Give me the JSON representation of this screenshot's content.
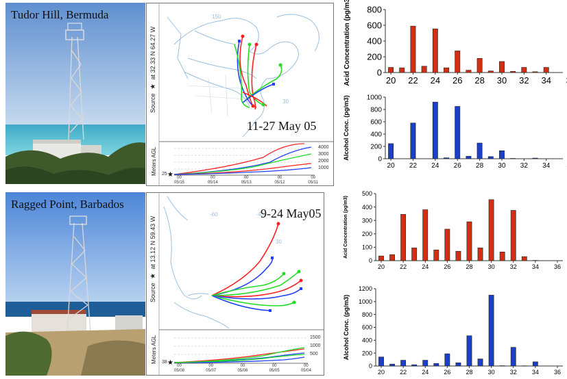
{
  "sites": [
    {
      "name": "Tudor Hill, Bermuda",
      "source_lat": "32.33 N",
      "source_lon": "64.27 W",
      "date_range": "11-27 May 05",
      "map_labels": [
        "150",
        "30"
      ],
      "height_axis_label": "Meters AGL",
      "height_ticks": [
        "4000",
        "3000",
        "2000",
        "1000"
      ],
      "height_base": "25",
      "date_ticks": [
        {
          "top": "00",
          "bottom": "05/15"
        },
        {
          "top": "00",
          "bottom": "05/14"
        },
        {
          "top": "00",
          "bottom": "05/13"
        },
        {
          "top": "00",
          "bottom": "05/12"
        },
        {
          "top": "00",
          "bottom": "05/11"
        }
      ]
    },
    {
      "name": "Ragged Point, Barbados",
      "source_lat": "13.12 N",
      "source_lon": "59.43 W",
      "date_range": "9-24 May05",
      "map_labels": [
        "-60",
        "-45",
        "30"
      ],
      "height_axis_label": "Meters AGL",
      "height_ticks": [
        "1500",
        "1000",
        "500"
      ],
      "height_base": "38",
      "date_ticks": [
        {
          "top": "00",
          "bottom": "05/08"
        },
        {
          "top": "00",
          "bottom": "05/07"
        },
        {
          "top": "00",
          "bottom": "05/06"
        },
        {
          "top": "00",
          "bottom": "05/05"
        },
        {
          "top": "00",
          "bottom": "05/04"
        }
      ]
    }
  ],
  "source_word": "Source",
  "at_word": "at",
  "colors": {
    "acid": "#d42e12",
    "alcohol": "#1c3fc8",
    "traj_red": "#ff2020",
    "traj_blue": "#2040ff",
    "traj_green": "#22dd22",
    "map_line": "#9cc0e0"
  },
  "chart_data": [
    {
      "type": "bar",
      "ylabel": "Acid Concentration (pg/m3)",
      "ylim": [
        0,
        800
      ],
      "yticks": [
        0,
        200,
        400,
        600,
        800
      ],
      "xticks": [
        "20",
        "22",
        "24",
        "26",
        "28",
        "30",
        "32",
        "34",
        "3"
      ],
      "x": [
        20,
        21,
        22,
        23,
        24,
        25,
        26,
        27,
        28,
        29,
        30,
        31,
        32,
        33,
        34
      ],
      "values": [
        65,
        60,
        590,
        80,
        555,
        60,
        275,
        30,
        180,
        20,
        140,
        15,
        65,
        10,
        65
      ],
      "color": "#d42e12"
    },
    {
      "type": "bar",
      "ylabel": "Alcohol Conc. (pg/m3)",
      "ylim": [
        0,
        1000
      ],
      "yticks": [
        0,
        200,
        400,
        600,
        800,
        1000
      ],
      "xticks": [
        "20",
        "22",
        "24",
        "26",
        "28",
        "30",
        "32",
        "34",
        "3"
      ],
      "x": [
        20,
        22,
        24,
        25,
        26,
        27,
        28,
        29,
        30,
        31,
        33
      ],
      "values": [
        245,
        580,
        920,
        15,
        850,
        40,
        255,
        35,
        130,
        5,
        10
      ],
      "color": "#1c3fc8"
    },
    {
      "type": "bar",
      "ylabel": "Acid Concentration (pg/m3)",
      "ylim": [
        0,
        500
      ],
      "yticks": [
        0,
        100,
        200,
        300,
        400,
        500
      ],
      "xticks": [
        "20",
        "22",
        "24",
        "26",
        "28",
        "30",
        "32",
        "34",
        "36"
      ],
      "x": [
        20,
        21,
        22,
        23,
        24,
        25,
        26,
        27,
        28,
        29,
        30,
        31,
        32,
        33,
        34
      ],
      "values": [
        35,
        45,
        345,
        95,
        380,
        80,
        235,
        70,
        290,
        95,
        455,
        65,
        375,
        30,
        2
      ],
      "color": "#d42e12"
    },
    {
      "type": "bar",
      "ylabel": "Alcohol Conc. (pg/m3)",
      "ylim": [
        0,
        1200
      ],
      "yticks": [
        0,
        200,
        400,
        600,
        800,
        1000,
        1200
      ],
      "xticks": [
        "20",
        "22",
        "24",
        "26",
        "28",
        "30",
        "32",
        "34",
        "36"
      ],
      "x": [
        20,
        21,
        22,
        23,
        24,
        25,
        26,
        27,
        28,
        29,
        30,
        31,
        32,
        33,
        34
      ],
      "values": [
        140,
        30,
        90,
        20,
        90,
        40,
        190,
        50,
        470,
        110,
        1100,
        5,
        290,
        3,
        65
      ],
      "color": "#1c3fc8"
    }
  ]
}
